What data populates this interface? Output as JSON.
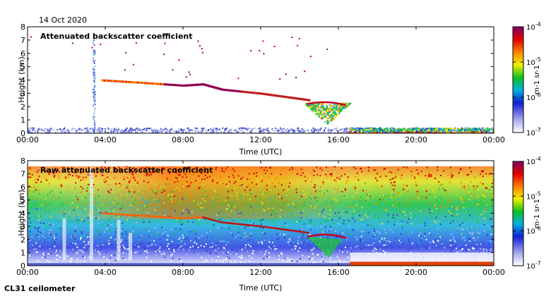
{
  "date": "14 Oct 2020",
  "footer": "CL31 ceilometer",
  "chart_data": [
    {
      "type": "heatmap",
      "title": "Attenuated backscatter coefficient",
      "xlabel": "Time (UTC)",
      "ylabel": "Height (km)",
      "xticks": [
        "00:00",
        "04:00",
        "08:00",
        "12:00",
        "16:00",
        "20:00",
        "00:00"
      ],
      "yticks": [
        0,
        1,
        2,
        3,
        4,
        5,
        6,
        7,
        8
      ],
      "xlim_hours": [
        0,
        24
      ],
      "ylim_km": [
        0,
        8
      ],
      "colorbar": {
        "ticks": [
          "10^-7",
          "10^-6",
          "10^-5",
          "10^-4"
        ],
        "unit": "m-1 sr-1",
        "scale": "log",
        "range": [
          1e-07,
          0.0001
        ]
      },
      "features": [
        {
          "name": "cloud layer",
          "points": [
            [
              3.8,
              4.0
            ],
            [
              6,
              3.8
            ],
            [
              8,
              3.6
            ],
            [
              9,
              3.7
            ],
            [
              10,
              3.3
            ],
            [
              12,
              3.0
            ],
            [
              13.5,
              2.7
            ],
            [
              14.5,
              2.5
            ]
          ]
        },
        {
          "name": "low cloud",
          "points": [
            [
              15,
              2.2
            ],
            [
              15.6,
              1.0
            ],
            [
              16,
              2.2
            ],
            [
              16.5,
              0.5
            ],
            [
              24,
              0.2
            ]
          ]
        },
        {
          "name": "precipitation fall-streak",
          "points": [
            [
              3.4,
              0.2
            ],
            [
              3.4,
              7.5
            ]
          ]
        }
      ]
    },
    {
      "type": "heatmap",
      "title": "Raw attenuated backscatter coefficient",
      "xlabel": "Time (UTC)",
      "ylabel": "Height (km)",
      "xticks": [
        "00:00",
        "04:00",
        "08:00",
        "12:00",
        "16:00",
        "20:00",
        "00:00"
      ],
      "yticks": [
        0,
        1,
        2,
        3,
        4,
        5,
        6,
        7,
        8
      ],
      "xlim_hours": [
        0,
        24
      ],
      "ylim_km": [
        0,
        8
      ],
      "colorbar": {
        "ticks": [
          "10^-7",
          "10^-6",
          "10^-5",
          "10^-4"
        ],
        "unit": "m-1 sr-1",
        "scale": "log",
        "range": [
          1e-07,
          0.0001
        ]
      }
    }
  ]
}
